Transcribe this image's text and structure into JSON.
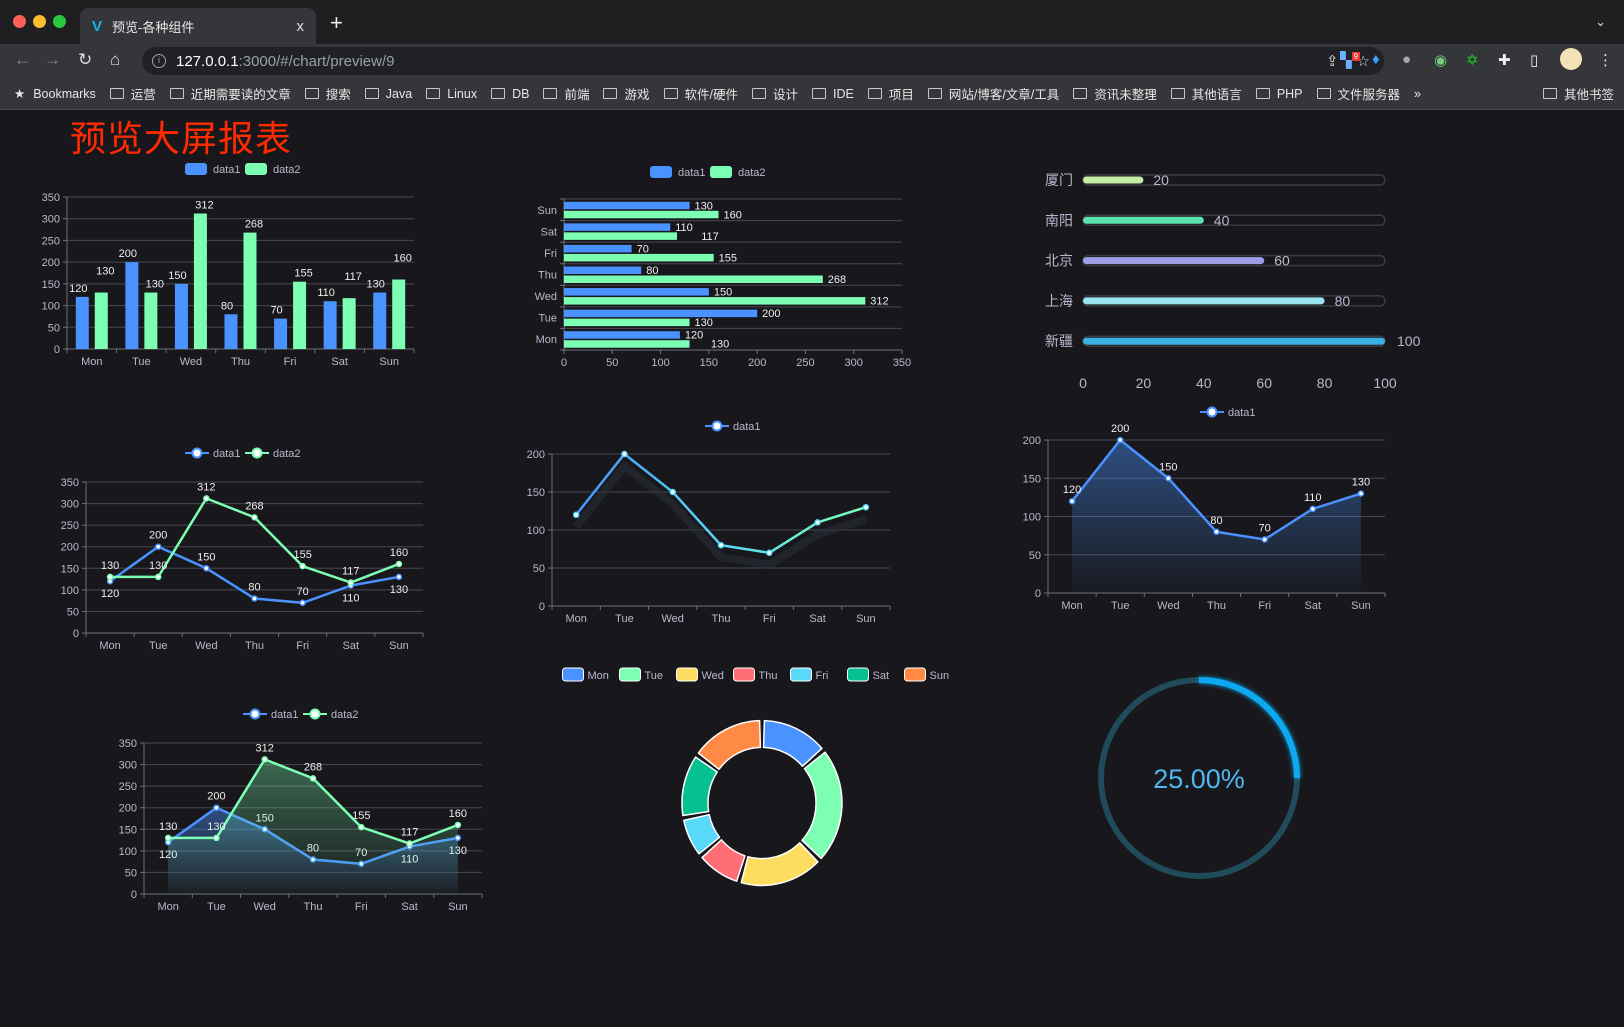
{
  "browser": {
    "tab_title": "预览-各种组件",
    "tab_close": "x",
    "new_tab": "+",
    "tab_menu": "⌄",
    "url_host": "127.0.0.1",
    "url_path": ":3000/#/chart/preview/9",
    "extension_badge": "9",
    "bookmarks_label": "Bookmarks",
    "bookmarks": [
      "运营",
      "近期需要读的文章",
      "搜索",
      "Java",
      "Linux",
      "DB",
      "前端",
      "游戏",
      "软件/硬件",
      "设计",
      "IDE",
      "项目",
      "网站/博客/文章/工具",
      "资讯未整理",
      "其他语言",
      "PHP",
      "文件服务器"
    ],
    "bookmarks_more": "»",
    "other_bookmarks": "其他书签"
  },
  "page": {
    "title": "预览大屏报表",
    "title_color": "#ff2a00"
  },
  "colors": {
    "data1": "#4992ff",
    "data2": "#7cffb2"
  },
  "chart_data": [
    {
      "type": "bar",
      "legend": [
        "data1",
        "data2"
      ],
      "categories": [
        "Mon",
        "Tue",
        "Wed",
        "Thu",
        "Fri",
        "Sat",
        "Sun"
      ],
      "series": [
        {
          "name": "data1",
          "values": [
            120,
            200,
            150,
            80,
            70,
            110,
            130
          ]
        },
        {
          "name": "data2",
          "values": [
            130,
            130,
            312,
            268,
            155,
            117,
            160
          ]
        }
      ],
      "ylim": [
        0,
        350
      ],
      "yticks": [
        0,
        50,
        100,
        150,
        200,
        250,
        300,
        350
      ],
      "grid": true,
      "legend_position": "top"
    },
    {
      "type": "bar",
      "orientation": "horizontal",
      "legend": [
        "data1",
        "data2"
      ],
      "categories": [
        "Mon",
        "Tue",
        "Wed",
        "Thu",
        "Fri",
        "Sat",
        "Sun"
      ],
      "series": [
        {
          "name": "data1",
          "values": [
            120,
            200,
            150,
            80,
            70,
            110,
            130
          ]
        },
        {
          "name": "data2",
          "values": [
            130,
            130,
            312,
            268,
            155,
            117,
            160
          ]
        }
      ],
      "xlim": [
        0,
        350
      ],
      "xticks": [
        0,
        50,
        100,
        150,
        200,
        250,
        300,
        350
      ],
      "grid": true,
      "legend_position": "top"
    },
    {
      "type": "bar",
      "orientation": "horizontal",
      "style": "progress",
      "categories": [
        "厦门",
        "南阳",
        "北京",
        "上海",
        "新疆"
      ],
      "values": [
        20,
        40,
        60,
        80,
        100
      ],
      "xlim": [
        0,
        100
      ],
      "xticks": [
        0,
        20,
        40,
        60,
        80,
        100
      ],
      "colors": [
        "#c5eea6",
        "#5ee2b2",
        "#9d9ee8",
        "#98e4ee",
        "#3bb0e4"
      ]
    },
    {
      "type": "line",
      "legend": [
        "data1",
        "data2"
      ],
      "categories": [
        "Mon",
        "Tue",
        "Wed",
        "Thu",
        "Fri",
        "Sat",
        "Sun"
      ],
      "series": [
        {
          "name": "data1",
          "values": [
            120,
            200,
            150,
            80,
            70,
            110,
            130
          ]
        },
        {
          "name": "data2",
          "values": [
            130,
            130,
            312,
            268,
            155,
            117,
            160
          ]
        }
      ],
      "ylim": [
        0,
        350
      ],
      "yticks": [
        0,
        50,
        100,
        150,
        200,
        250,
        300,
        350
      ],
      "grid": true
    },
    {
      "type": "line",
      "legend": [
        "data1"
      ],
      "categories": [
        "Mon",
        "Tue",
        "Wed",
        "Thu",
        "Fri",
        "Sat",
        "Sun"
      ],
      "series": [
        {
          "name": "data1",
          "values": [
            120,
            200,
            150,
            80,
            70,
            110,
            130
          ]
        }
      ],
      "ylim": [
        0,
        200
      ],
      "yticks": [
        0,
        50,
        100,
        150,
        200
      ],
      "grid": true,
      "data_labels": false
    },
    {
      "type": "area",
      "legend": [
        "data1"
      ],
      "categories": [
        "Mon",
        "Tue",
        "Wed",
        "Thu",
        "Fri",
        "Sat",
        "Sun"
      ],
      "series": [
        {
          "name": "data1",
          "values": [
            120,
            200,
            150,
            80,
            70,
            110,
            130
          ]
        }
      ],
      "ylim": [
        0,
        200
      ],
      "yticks": [
        0,
        50,
        100,
        150,
        200
      ],
      "grid": true
    },
    {
      "type": "area",
      "legend": [
        "data1",
        "data2"
      ],
      "categories": [
        "Mon",
        "Tue",
        "Wed",
        "Thu",
        "Fri",
        "Sat",
        "Sun"
      ],
      "series": [
        {
          "name": "data1",
          "values": [
            120,
            200,
            150,
            80,
            70,
            110,
            130
          ]
        },
        {
          "name": "data2",
          "values": [
            130,
            130,
            312,
            268,
            155,
            117,
            160
          ]
        }
      ],
      "ylim": [
        0,
        350
      ],
      "yticks": [
        0,
        50,
        100,
        150,
        200,
        250,
        300,
        350
      ],
      "grid": true
    },
    {
      "type": "pie",
      "style": "donut",
      "categories": [
        "Mon",
        "Tue",
        "Wed",
        "Thu",
        "Fri",
        "Sat",
        "Sun"
      ],
      "values": [
        120,
        200,
        150,
        80,
        70,
        110,
        130
      ],
      "colors": [
        "#4992ff",
        "#7cffb2",
        "#fddd60",
        "#ff6e76",
        "#58d9f9",
        "#05c091",
        "#ff8a45"
      ]
    },
    {
      "type": "gauge",
      "value": 25,
      "label": "25.00%",
      "color": "#0aa8f0",
      "track_color": "#1f4b5a"
    }
  ]
}
